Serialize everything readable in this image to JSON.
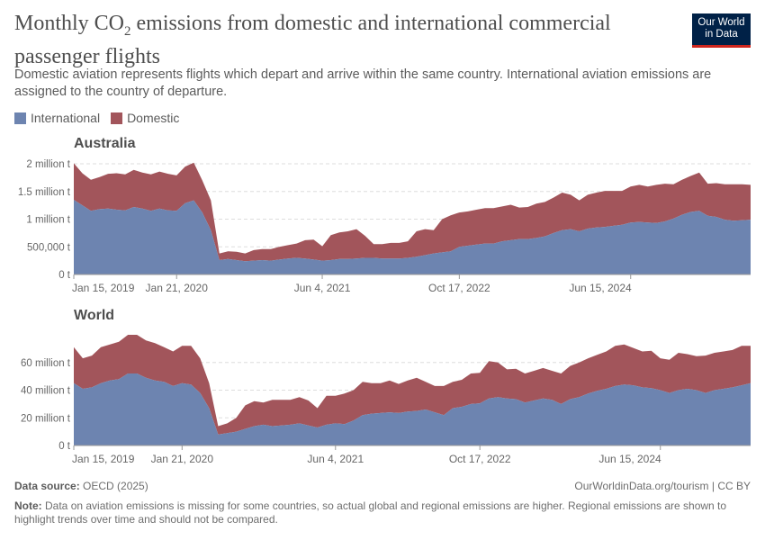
{
  "header": {
    "title_pre": "Monthly CO",
    "title_sub": "2",
    "title_post": " emissions from domestic and international commercial passenger flights",
    "subtitle": "Domestic aviation represents flights which depart and arrive within the same country. International aviation emissions are assigned to the country of departure.",
    "logo_line1": "Our World",
    "logo_line2": "in Data"
  },
  "legend": {
    "international": "International",
    "domestic": "Domestic"
  },
  "colors": {
    "international": "#6d84b0",
    "domestic": "#a2555b",
    "grid": "#dddddd",
    "text": "#666666"
  },
  "footer": {
    "source_label": "Data source:",
    "source_text": " OECD (2025)",
    "right_text": "OurWorldinData.org/tourism | CC BY",
    "note_label": "Note:",
    "note_text": " Data on aviation emissions is missing for some countries, so actual global and regional emissions are higher. Regional emissions are shown to highlight trends over time and should not be compared."
  },
  "chart_data": [
    {
      "type": "area",
      "stacked": true,
      "title": "Australia",
      "x_start": "Jan 15, 2019",
      "x_ticks": [
        "Jan 15, 2019",
        "Jan 21, 2020",
        "Jun 4, 2021",
        "Oct 17, 2022",
        "Jun 15, 2024"
      ],
      "x_tick_months": [
        0,
        12,
        29,
        45,
        65
      ],
      "ylim": [
        0,
        2000000
      ],
      "y_ticks": [
        0,
        500000,
        1000000,
        1500000,
        2000000
      ],
      "y_tick_labels": [
        "0 t",
        "500,000 t",
        "1 million t",
        "1.5 million t",
        "2 million t"
      ],
      "grid": true,
      "series": [
        {
          "name": "International",
          "values": [
            1350000,
            1250000,
            1150000,
            1180000,
            1190000,
            1170000,
            1160000,
            1220000,
            1190000,
            1150000,
            1190000,
            1160000,
            1150000,
            1290000,
            1340000,
            1120000,
            800000,
            260000,
            280000,
            260000,
            240000,
            250000,
            260000,
            250000,
            270000,
            290000,
            300000,
            290000,
            270000,
            250000,
            260000,
            280000,
            280000,
            290000,
            300000,
            300000,
            290000,
            290000,
            290000,
            300000,
            320000,
            350000,
            380000,
            400000,
            420000,
            500000,
            520000,
            540000,
            560000,
            560000,
            600000,
            620000,
            640000,
            640000,
            660000,
            690000,
            750000,
            800000,
            820000,
            780000,
            830000,
            850000,
            860000,
            880000,
            900000,
            940000,
            950000,
            940000,
            930000,
            960000,
            1010000,
            1080000,
            1130000,
            1150000,
            1060000,
            1040000,
            990000,
            970000,
            980000,
            990000
          ]
        },
        {
          "name": "Domestic",
          "values": [
            660000,
            580000,
            560000,
            580000,
            630000,
            660000,
            650000,
            670000,
            650000,
            660000,
            670000,
            660000,
            640000,
            660000,
            680000,
            580000,
            540000,
            120000,
            140000,
            150000,
            140000,
            190000,
            200000,
            210000,
            230000,
            240000,
            260000,
            330000,
            360000,
            260000,
            450000,
            480000,
            500000,
            530000,
            400000,
            250000,
            260000,
            280000,
            280000,
            300000,
            460000,
            470000,
            420000,
            600000,
            650000,
            620000,
            620000,
            630000,
            640000,
            640000,
            630000,
            640000,
            570000,
            580000,
            620000,
            620000,
            640000,
            680000,
            620000,
            560000,
            610000,
            630000,
            650000,
            630000,
            610000,
            650000,
            670000,
            650000,
            690000,
            680000,
            620000,
            630000,
            650000,
            690000,
            580000,
            610000,
            640000,
            660000,
            650000,
            630000
          ]
        }
      ]
    },
    {
      "type": "area",
      "stacked": true,
      "title": "World",
      "x_start": "Jan 15, 2019",
      "x_ticks": [
        "Jan 15, 2019",
        "Jan 21, 2020",
        "Jun 4, 2021",
        "Oct 17, 2022",
        "Jun 15, 2024"
      ],
      "x_tick_months": [
        0,
        12,
        29,
        45,
        65
      ],
      "ylim": [
        0,
        80000000
      ],
      "y_ticks": [
        0,
        20000000,
        40000000,
        60000000
      ],
      "y_tick_labels": [
        "0 t",
        "20 million t",
        "40 million t",
        "60 million t"
      ],
      "grid": true,
      "series": [
        {
          "name": "International",
          "values": [
            45000000,
            41000000,
            42000000,
            45000000,
            47000000,
            48000000,
            52000000,
            52000000,
            49000000,
            47000000,
            46000000,
            43000000,
            45000000,
            44000000,
            38000000,
            27000000,
            8000000,
            9000000,
            10000000,
            12000000,
            14000000,
            15000000,
            14000000,
            14500000,
            15000000,
            16000000,
            14500000,
            13000000,
            15000000,
            16000000,
            15500000,
            18000000,
            22000000,
            23000000,
            23500000,
            24000000,
            23500000,
            24500000,
            25000000,
            26000000,
            24000000,
            22000000,
            27000000,
            28000000,
            30000000,
            30500000,
            34000000,
            35000000,
            34000000,
            33500000,
            31000000,
            32500000,
            34000000,
            33000000,
            30000000,
            33500000,
            35000000,
            37500000,
            39500000,
            41000000,
            43000000,
            44000000,
            43500000,
            42000000,
            41500000,
            40000000,
            38000000,
            40000000,
            41000000,
            40000000,
            38000000,
            40000000,
            41000000,
            42000000,
            43500000,
            45000000
          ]
        },
        {
          "name": "Domestic",
          "values": [
            26000000,
            22000000,
            23000000,
            26000000,
            26000000,
            27000000,
            28000000,
            28000000,
            27000000,
            27000000,
            25000000,
            25000000,
            27000000,
            28000000,
            25000000,
            18000000,
            6000000,
            7000000,
            10000000,
            17000000,
            18000000,
            16000000,
            19000000,
            18500000,
            18000000,
            19000000,
            18000000,
            14000000,
            21000000,
            20000000,
            22000000,
            22000000,
            24000000,
            22000000,
            21500000,
            23000000,
            21000000,
            22500000,
            24000000,
            20000000,
            19000000,
            21000000,
            19000000,
            19500000,
            22000000,
            22000000,
            27000000,
            25000000,
            21000000,
            22000000,
            21000000,
            21500000,
            22000000,
            21000000,
            22000000,
            24000000,
            25000000,
            25500000,
            26000000,
            27000000,
            29000000,
            29000000,
            27000000,
            26000000,
            27000000,
            23000000,
            24000000,
            27000000,
            25000000,
            24500000,
            27000000,
            27000000,
            27000000,
            27000000,
            28500000,
            27000000
          ]
        }
      ]
    }
  ]
}
